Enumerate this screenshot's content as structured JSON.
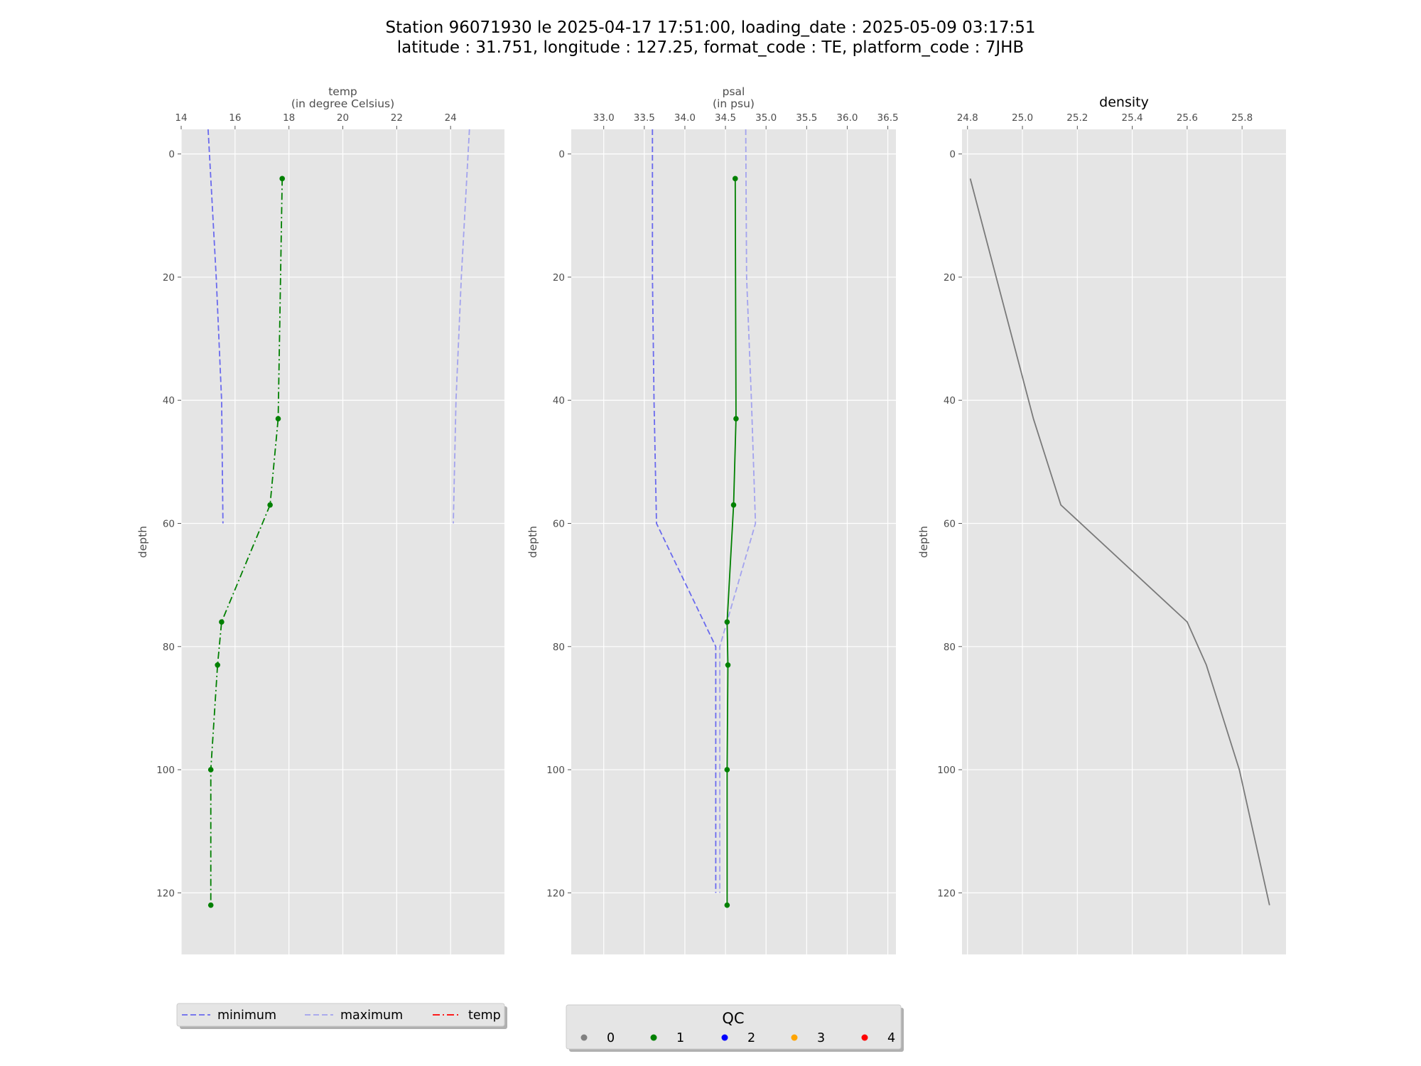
{
  "figure": {
    "title_line1": "Station 96071930 le 2025-04-17 17:51:00, loading_date : 2025-05-09 03:17:51",
    "title_line2": "latitude : 31.751, longitude : 127.25, format_code : TE, platform_code : 7JHB"
  },
  "colors": {
    "panel_bg": "#e5e5e5",
    "grid": "#ffffff",
    "minimum": "#6a6aee",
    "maximum": "#a3a3ee",
    "profile": "#008000",
    "density": "#7a7a7a",
    "qc0": "#808080",
    "qc1": "#008000",
    "qc2": "#0000ff",
    "qc3": "#ffa500",
    "qc4": "#ff0000",
    "temp_legend": "#ff0000"
  },
  "chart_data": [
    {
      "type": "line",
      "name": "temp",
      "xlabel": "temp",
      "xlabel_unit": "(in degree Celsius)",
      "ylabel": "depth",
      "xlim": [
        14.0,
        26.0
      ],
      "ylim": [
        130,
        -4
      ],
      "xticks": [
        14,
        16,
        18,
        20,
        22,
        24
      ],
      "xtick_labels": [
        "14",
        "16",
        "18",
        "20",
        "22",
        "24"
      ],
      "yticks": [
        0,
        20,
        40,
        60,
        80,
        100,
        120
      ],
      "ytick_labels": [
        "0",
        "20",
        "40",
        "60",
        "80",
        "100",
        "120"
      ],
      "series": [
        {
          "name": "minimum",
          "style": "dashed",
          "points": [
            [
              15.0,
              -4
            ],
            [
              15.3,
              20
            ],
            [
              15.5,
              40
            ],
            [
              15.55,
              60
            ]
          ]
        },
        {
          "name": "maximum",
          "style": "dashed",
          "points": [
            [
              24.7,
              -4
            ],
            [
              24.4,
              20
            ],
            [
              24.2,
              40
            ],
            [
              24.1,
              60
            ]
          ]
        },
        {
          "name": "temp",
          "style": "dashdot",
          "markers": true,
          "points": [
            [
              17.75,
              4
            ],
            [
              17.6,
              43
            ],
            [
              17.3,
              57
            ],
            [
              15.5,
              76
            ],
            [
              15.35,
              83
            ],
            [
              15.1,
              100
            ],
            [
              15.1,
              122
            ]
          ]
        }
      ]
    },
    {
      "type": "line",
      "name": "psal",
      "xlabel": "psal",
      "xlabel_unit": "(in psu)",
      "ylabel": "depth",
      "xlim": [
        32.6,
        36.6
      ],
      "ylim": [
        130,
        -4
      ],
      "xticks": [
        33.0,
        33.5,
        34.0,
        34.5,
        35.0,
        35.5,
        36.0,
        36.5
      ],
      "xtick_labels": [
        "33.0",
        "33.5",
        "34.0",
        "34.5",
        "35.0",
        "35.5",
        "36.0",
        "36.5"
      ],
      "yticks": [
        0,
        20,
        40,
        60,
        80,
        100,
        120
      ],
      "ytick_labels": [
        "0",
        "20",
        "40",
        "60",
        "80",
        "100",
        "120"
      ],
      "series": [
        {
          "name": "minimum",
          "style": "dashed",
          "points": [
            [
              33.6,
              -4
            ],
            [
              33.6,
              20
            ],
            [
              33.62,
              40
            ],
            [
              33.65,
              60
            ],
            [
              34.38,
              80
            ],
            [
              34.38,
              100
            ],
            [
              34.38,
              120
            ]
          ]
        },
        {
          "name": "maximum",
          "style": "dashed",
          "points": [
            [
              34.75,
              -4
            ],
            [
              34.76,
              20
            ],
            [
              34.82,
              40
            ],
            [
              34.87,
              60
            ],
            [
              34.43,
              80
            ],
            [
              34.43,
              100
            ],
            [
              34.43,
              120
            ]
          ]
        },
        {
          "name": "psal",
          "style": "solid",
          "markers": true,
          "points": [
            [
              34.62,
              4
            ],
            [
              34.63,
              43
            ],
            [
              34.6,
              57
            ],
            [
              34.52,
              76
            ],
            [
              34.53,
              83
            ],
            [
              34.52,
              100
            ],
            [
              34.52,
              122
            ]
          ]
        }
      ]
    },
    {
      "type": "line",
      "name": "density",
      "title": "density",
      "ylabel": "depth",
      "xlim": [
        24.78,
        25.96
      ],
      "ylim": [
        130,
        -4
      ],
      "xticks": [
        24.8,
        25.0,
        25.2,
        25.4,
        25.6,
        25.8
      ],
      "xtick_labels": [
        "24.8",
        "25.0",
        "25.2",
        "25.4",
        "25.6",
        "25.8"
      ],
      "yticks": [
        0,
        20,
        40,
        60,
        80,
        100,
        120
      ],
      "ytick_labels": [
        "0",
        "20",
        "40",
        "60",
        "80",
        "100",
        "120"
      ],
      "series": [
        {
          "name": "density",
          "style": "solid",
          "markers": false,
          "points": [
            [
              24.81,
              4
            ],
            [
              25.04,
              43
            ],
            [
              25.14,
              57
            ],
            [
              25.6,
              76
            ],
            [
              25.67,
              83
            ],
            [
              25.79,
              100
            ],
            [
              25.9,
              122
            ]
          ]
        }
      ]
    }
  ],
  "legend_lines": {
    "items": [
      {
        "label": "minimum",
        "style": "dashed",
        "color_key": "minimum"
      },
      {
        "label": "maximum",
        "style": "dashed",
        "color_key": "maximum"
      },
      {
        "label": "temp",
        "style": "dashdot",
        "color_key": "temp_legend"
      }
    ]
  },
  "legend_qc": {
    "title": "QC",
    "items": [
      {
        "label": "0",
        "color_key": "qc0"
      },
      {
        "label": "1",
        "color_key": "qc1"
      },
      {
        "label": "2",
        "color_key": "qc2"
      },
      {
        "label": "3",
        "color_key": "qc3"
      },
      {
        "label": "4",
        "color_key": "qc4"
      }
    ]
  }
}
